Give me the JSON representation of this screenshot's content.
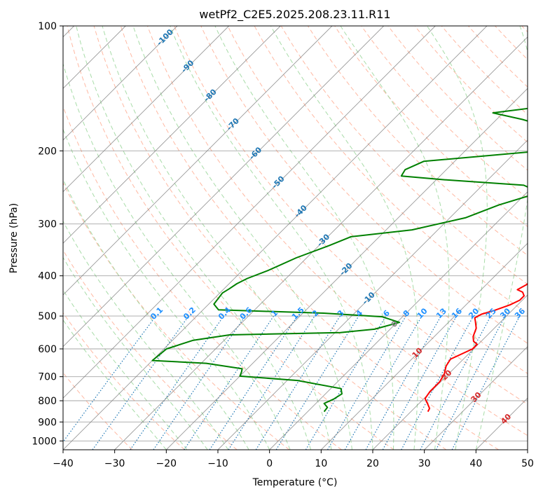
{
  "chart_data": {
    "type": "line",
    "title": "wetPf2_C2E5.2025.208.23.11.R11",
    "xlabel": "Temperature (°C)",
    "ylabel": "Pressure (hPa)",
    "xlim": [
      -40,
      50
    ],
    "ylim": [
      1050,
      100
    ],
    "y_scale": "log",
    "x_ticks": [
      "−40",
      "−30",
      "−20",
      "−10",
      "0",
      "10",
      "20",
      "30",
      "40",
      "50"
    ],
    "y_ticks": [
      "100",
      "200",
      "300",
      "400",
      "500",
      "600",
      "700",
      "800",
      "900",
      "1000"
    ],
    "grid": true,
    "colors": {
      "temperature": "#ff0000",
      "dewpoint": "#008000",
      "dry_adiabat": "#ffb199",
      "moist_adiabat": "#9ed89e",
      "mixing_ratio": "#1f77b4",
      "isotherm": "#808080",
      "iso_label": "#1f77b4",
      "mixing_label": "#1e90ff",
      "red_label": "#d62728"
    },
    "isotherm_labels": [
      "-100",
      "-90",
      "-80",
      "-70",
      "-60",
      "-50",
      "-40",
      "-30",
      "-20",
      "-10",
      "0",
      "10",
      "20",
      "30",
      "40"
    ],
    "mixing_ratio_labels": [
      "0.1",
      "0.2",
      "0.4",
      "0.6",
      "1",
      "1.5",
      "2",
      "3",
      "4",
      "6",
      "8",
      "10",
      "13",
      "16",
      "20",
      "25",
      "30",
      "36"
    ],
    "series": [
      {
        "name": "Temperature",
        "points": [
          [
            23.3,
            850
          ],
          [
            23.0,
            835
          ],
          [
            21.5,
            810
          ],
          [
            20.2,
            790
          ],
          [
            19.8,
            760
          ],
          [
            19.8,
            720
          ],
          [
            19.2,
            690
          ],
          [
            18.0,
            660
          ],
          [
            17.5,
            635
          ],
          [
            18.5,
            620
          ],
          [
            19.8,
            600
          ],
          [
            19.8,
            585
          ],
          [
            18.5,
            575
          ],
          [
            17.5,
            560
          ],
          [
            16.5,
            535
          ],
          [
            15.0,
            515
          ],
          [
            14.2,
            505
          ],
          [
            14.8,
            495
          ],
          [
            16.5,
            485
          ],
          [
            18.5,
            470
          ],
          [
            19.5,
            458
          ],
          [
            19.5,
            447
          ],
          [
            18.5,
            438
          ],
          [
            17.0,
            432
          ],
          [
            17.8,
            420
          ],
          [
            18.0,
            395
          ],
          [
            18.2,
            380
          ],
          [
            18.5,
            368
          ],
          [
            16.0,
            345
          ],
          [
            13.0,
            318
          ],
          [
            10.0,
            293
          ],
          [
            8.0,
            272
          ],
          [
            7.5,
            250
          ],
          [
            7.3,
            228
          ],
          [
            6.8,
            213
          ],
          [
            5.5,
            200
          ],
          [
            4.2,
            187
          ],
          [
            4.2,
            175
          ],
          [
            5.5,
            163
          ],
          [
            7.0,
            155
          ],
          [
            6.8,
            146
          ],
          [
            5.5,
            138
          ],
          [
            4.5,
            126
          ],
          [
            4.2,
            118
          ],
          [
            3.5,
            110
          ],
          [
            3.3,
            103
          ],
          [
            3.6,
            99
          ]
        ]
      },
      {
        "name": "Dewpoint",
        "points": [
          [
            3.2,
            850
          ],
          [
            3.0,
            830
          ],
          [
            1.6,
            812
          ],
          [
            2.6,
            793
          ],
          [
            3.2,
            770
          ],
          [
            2.0,
            748
          ],
          [
            -8.0,
            715
          ],
          [
            -20.0,
            698
          ],
          [
            -20.5,
            682
          ],
          [
            -21.0,
            670
          ],
          [
            -29.0,
            650
          ],
          [
            -40.0,
            640
          ],
          [
            -39.5,
            600
          ],
          [
            -36.0,
            572
          ],
          [
            -30.0,
            555
          ],
          [
            -9.0,
            548
          ],
          [
            -3.0,
            538
          ],
          [
            0.5,
            518
          ],
          [
            -4.0,
            502
          ],
          [
            -16.0,
            492
          ],
          [
            -37.0,
            483
          ],
          [
            -39.0,
            468
          ],
          [
            -39.5,
            440
          ],
          [
            -39.0,
            430
          ],
          [
            -38.5,
            418
          ],
          [
            -37.5,
            406
          ],
          [
            -35.0,
            388
          ],
          [
            -32.0,
            362
          ],
          [
            -28.0,
            338
          ],
          [
            -25.5,
            322
          ],
          [
            -15.0,
            310
          ],
          [
            -7.0,
            290
          ],
          [
            -3.0,
            270
          ],
          [
            2.5,
            252
          ],
          [
            -2.0,
            242
          ],
          [
            -18.0,
            235
          ],
          [
            -27.5,
            230
          ],
          [
            -28.0,
            222
          ],
          [
            -26.0,
            212
          ],
          [
            -7.0,
            201
          ],
          [
            -6.0,
            190
          ],
          [
            -8.0,
            179
          ],
          [
            -11.5,
            172
          ],
          [
            -15.0,
            168
          ],
          [
            -22.0,
            162
          ],
          [
            -16.0,
            158
          ],
          [
            -10.0,
            155
          ],
          [
            -4.5,
            148
          ],
          [
            -1.5,
            138
          ],
          [
            1.0,
            123
          ],
          [
            2.5,
            112
          ],
          [
            3.0,
            104
          ],
          [
            3.6,
            99
          ]
        ]
      }
    ]
  }
}
